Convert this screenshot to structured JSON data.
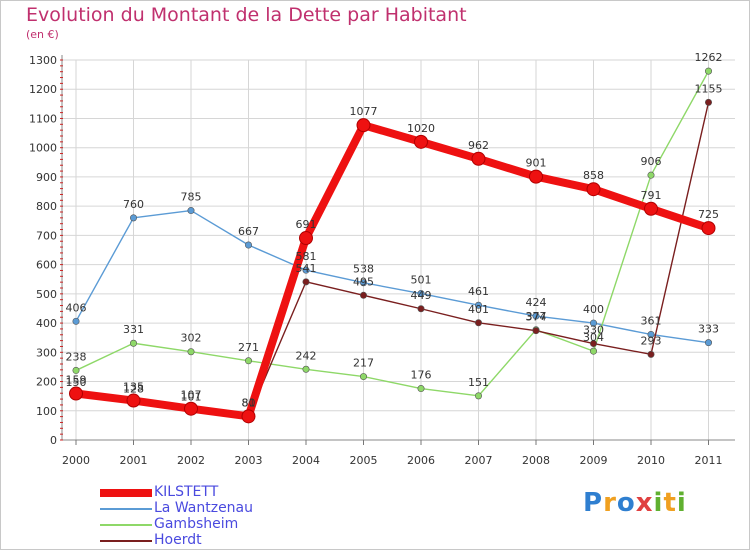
{
  "title": "Evolution du Montant de la Dette par Habitant",
  "unit": "(en €)",
  "logo": {
    "letters": [
      {
        "ch": "P",
        "color": "#2f7fd0"
      },
      {
        "ch": "r",
        "color": "#f0a020"
      },
      {
        "ch": "o",
        "color": "#2f7fd0"
      },
      {
        "ch": "x",
        "color": "#e04040"
      },
      {
        "ch": "i",
        "color": "#60b030"
      },
      {
        "ch": "t",
        "color": "#f0a020"
      },
      {
        "ch": "i",
        "color": "#60b030"
      }
    ]
  },
  "chart_data": {
    "type": "line",
    "title": "Evolution du Montant de la Dette par Habitant",
    "ylabel": "(en €)",
    "ylim": [
      0,
      1300
    ],
    "yticks": [
      0,
      100,
      200,
      300,
      400,
      500,
      600,
      700,
      800,
      900,
      1000,
      1100,
      1200,
      1300
    ],
    "categories": [
      "2000",
      "2001",
      "2002",
      "2003",
      "2004",
      "2005",
      "2006",
      "2007",
      "2008",
      "2009",
      "2010",
      "2011"
    ],
    "legend_position": "bottom-left",
    "series": [
      {
        "name": "KILSTETT",
        "color": "#ee1111",
        "style": "thick",
        "values": [
          159,
          135,
          107,
          81,
          691,
          1077,
          1020,
          962,
          901,
          858,
          791,
          725
        ],
        "labels": [
          "159",
          "135",
          "107",
          "81",
          "691",
          "1077",
          "1020",
          "962",
          "901",
          "858",
          "791",
          "725"
        ]
      },
      {
        "name": "La Wantzenau",
        "color": "#5b9bd5",
        "style": "thin",
        "values": [
          406,
          760,
          785,
          667,
          581,
          538,
          501,
          461,
          424,
          400,
          361,
          333
        ],
        "labels": [
          "406",
          "760",
          "785",
          "667",
          "581",
          "538",
          "501",
          "461",
          "424",
          "400",
          "361",
          "333"
        ]
      },
      {
        "name": "Gambsheim",
        "color": "#8ed868",
        "style": "thin",
        "values": [
          238,
          331,
          302,
          271,
          242,
          217,
          176,
          151,
          377,
          304,
          906,
          1262
        ],
        "labels": [
          "238",
          "331",
          "302",
          "271",
          "242",
          "217",
          "176",
          "151",
          "377",
          "304",
          "906",
          "1262"
        ]
      },
      {
        "name": "Hoerdt",
        "color": "#7a1f1f",
        "style": "thin",
        "values": [
          150,
          128,
          101,
          80,
          541,
          495,
          449,
          401,
          374,
          330,
          293,
          1155
        ],
        "labels": [
          "150",
          "128",
          "101",
          "80",
          "541",
          "495",
          "449",
          "401",
          "374",
          "330",
          "293",
          "1155"
        ]
      }
    ]
  }
}
